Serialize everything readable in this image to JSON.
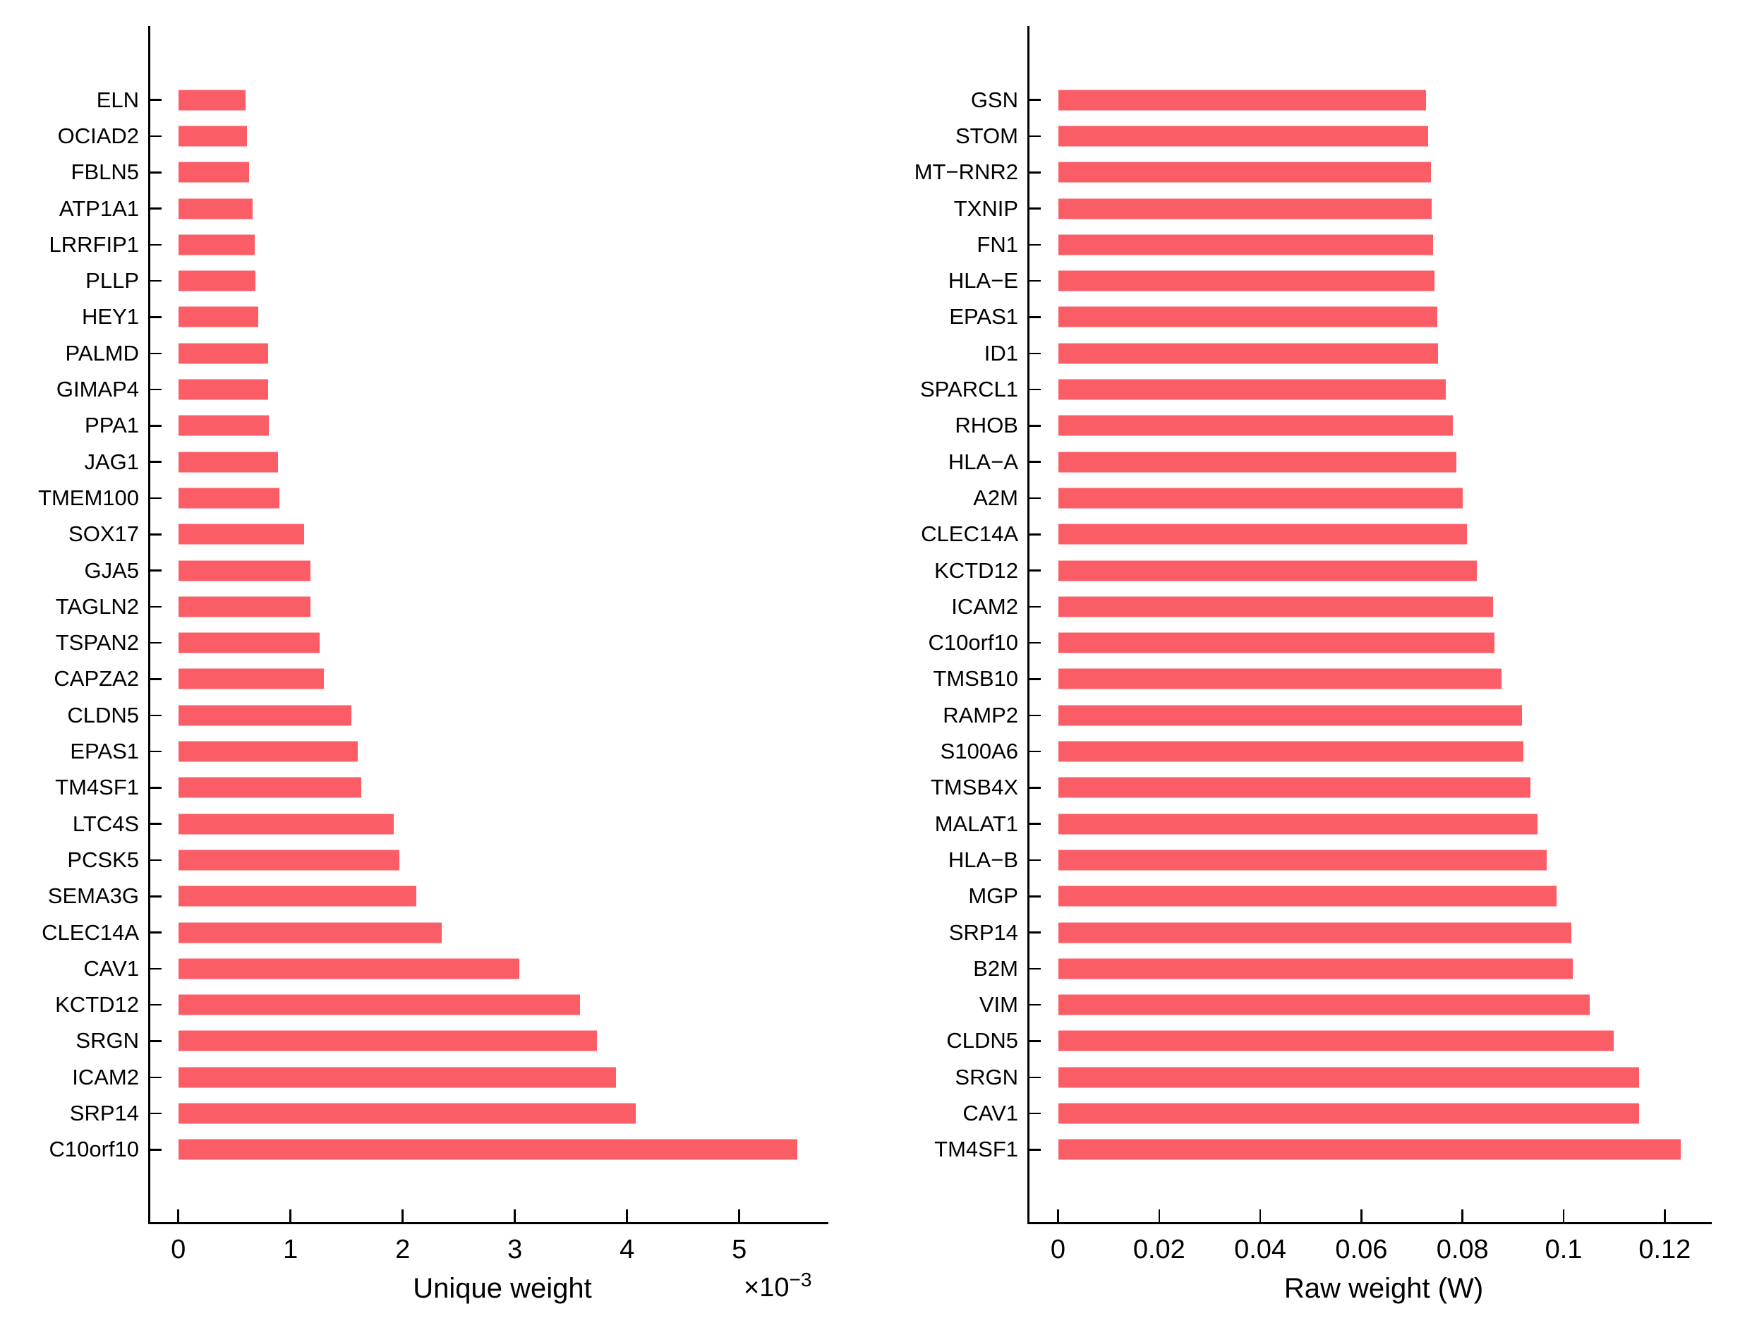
{
  "chart_data": [
    {
      "type": "bar",
      "orientation": "horizontal",
      "xlabel": "Unique weight",
      "exponent_annotation": {
        "base": "×10",
        "power": "−3"
      },
      "value_scale_note": "axis values are in units of 10^-3",
      "bar_color": "#FB5D67",
      "grid": false,
      "xlim": [
        0,
        5.8
      ],
      "xticks": {
        "values": [
          0,
          1,
          2,
          3,
          4,
          5
        ],
        "labels": [
          "0",
          "1",
          "2",
          "3",
          "4",
          "5"
        ]
      },
      "categories": [
        "ELN",
        "OCIAD2",
        "FBLN5",
        "ATP1A1",
        "LRRFIP1",
        "PLLP",
        "HEY1",
        "PALMD",
        "GIMAP4",
        "PPA1",
        "JAG1",
        "TMEM100",
        "SOX17",
        "GJA5",
        "TAGLN2",
        "TSPAN2",
        "CAPZA2",
        "CLDN5",
        "EPAS1",
        "TM4SF1",
        "LTC4S",
        "PCSK5",
        "SEMA3G",
        "CLEC14A",
        "CAV1",
        "KCTD12",
        "SRGN",
        "ICAM2",
        "SRP14",
        "C10orf10"
      ],
      "values": [
        0.6,
        0.61,
        0.63,
        0.66,
        0.68,
        0.69,
        0.71,
        0.8,
        0.8,
        0.81,
        0.89,
        0.9,
        1.12,
        1.18,
        1.18,
        1.26,
        1.3,
        1.54,
        1.6,
        1.63,
        1.92,
        1.97,
        2.12,
        2.35,
        3.04,
        3.58,
        3.73,
        3.9,
        4.08,
        5.52
      ]
    },
    {
      "type": "bar",
      "orientation": "horizontal",
      "xlabel": "Raw weight (W)",
      "exponent_annotation": null,
      "bar_color": "#FB5D67",
      "grid": false,
      "xlim": [
        0,
        0.1293
      ],
      "xticks": {
        "values": [
          0,
          0.02,
          0.04,
          0.06,
          0.08,
          0.1,
          0.12
        ],
        "labels": [
          "0",
          "0.02",
          "0.04",
          "0.06",
          "0.08",
          "0.1",
          "0.12"
        ]
      },
      "categories": [
        "GSN",
        "STOM",
        "MT−RNR2",
        "TXNIP",
        "FN1",
        "HLA−E",
        "EPAS1",
        "ID1",
        "SPARCL1",
        "RHOB",
        "HLA−A",
        "A2M",
        "CLEC14A",
        "KCTD12",
        "ICAM2",
        "C10orf10",
        "TMSB10",
        "RAMP2",
        "S100A6",
        "TMSB4X",
        "MALAT1",
        "HLA−B",
        "MGP",
        "SRP14",
        "B2M",
        "VIM",
        "CLDN5",
        "SRGN",
        "CAV1",
        "TM4SF1"
      ],
      "values": [
        0.0728,
        0.0732,
        0.0737,
        0.0739,
        0.0742,
        0.0745,
        0.075,
        0.0752,
        0.0767,
        0.0781,
        0.0788,
        0.08,
        0.0809,
        0.0828,
        0.086,
        0.0863,
        0.0877,
        0.0918,
        0.092,
        0.0934,
        0.0948,
        0.0966,
        0.0986,
        0.1015,
        0.1018,
        0.1051,
        0.1099,
        0.1149,
        0.115,
        0.1231
      ]
    }
  ]
}
